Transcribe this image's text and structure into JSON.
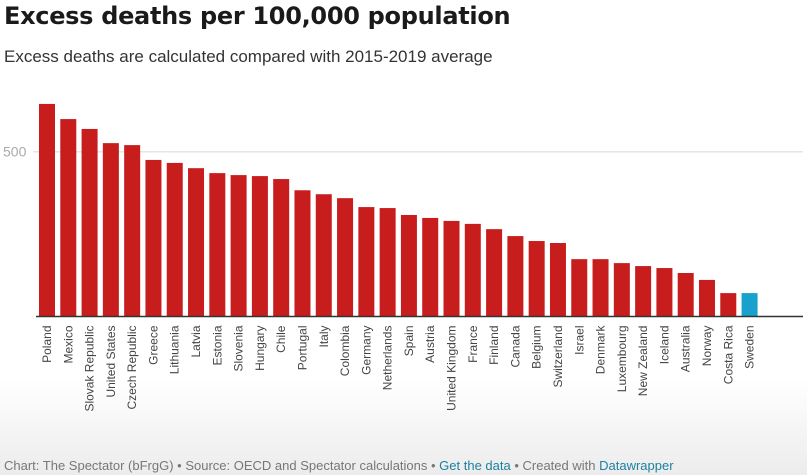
{
  "chart_data": {
    "type": "bar",
    "title": "Excess deaths per 100,000 population",
    "subtitle": "Excess deaths are calculated compared with 2015-2019 average",
    "xlabel": "",
    "ylabel": "",
    "ylim": [
      0,
      650
    ],
    "yticks": [
      500
    ],
    "grid": true,
    "categories": [
      "Poland",
      "Mexico",
      "Slovak Republic",
      "United States",
      "Czech Republic",
      "Greece",
      "Lithuania",
      "Latvia",
      "Estonia",
      "Slovenia",
      "Hungary",
      "Chile",
      "Portugal",
      "Italy",
      "Colombia",
      "Germany",
      "Netherlands",
      "Spain",
      "Austria",
      "United Kingdom",
      "France",
      "Finland",
      "Canada",
      "Belgium",
      "Switzerland",
      "Israel",
      "Denmark",
      "Luxembourg",
      "New Zealand",
      "Iceland",
      "Australia",
      "Norway",
      "Costa Rica",
      "Sweden"
    ],
    "values": [
      645,
      599,
      569,
      526,
      520,
      475,
      466,
      450,
      435,
      429,
      426,
      417,
      383,
      371,
      359,
      332,
      329,
      308,
      299,
      290,
      281,
      265,
      244,
      229,
      223,
      174,
      174,
      162,
      153,
      147,
      132,
      111,
      71,
      71
    ],
    "highlight": "Sweden",
    "colors": {
      "default": "#c71e1d",
      "highlight": "#18a1cd",
      "grid": "#e5e5e5",
      "axis": "#333333",
      "tick_label": "#aaaaaa",
      "category_label": "#444444"
    }
  },
  "footer": {
    "prefix": "Chart: The Spectator (bFrgG) • Source: OECD and Spectator calculations • ",
    "data_link": "Get the data",
    "middle": " • Created with ",
    "tool_link": "Datawrapper"
  }
}
